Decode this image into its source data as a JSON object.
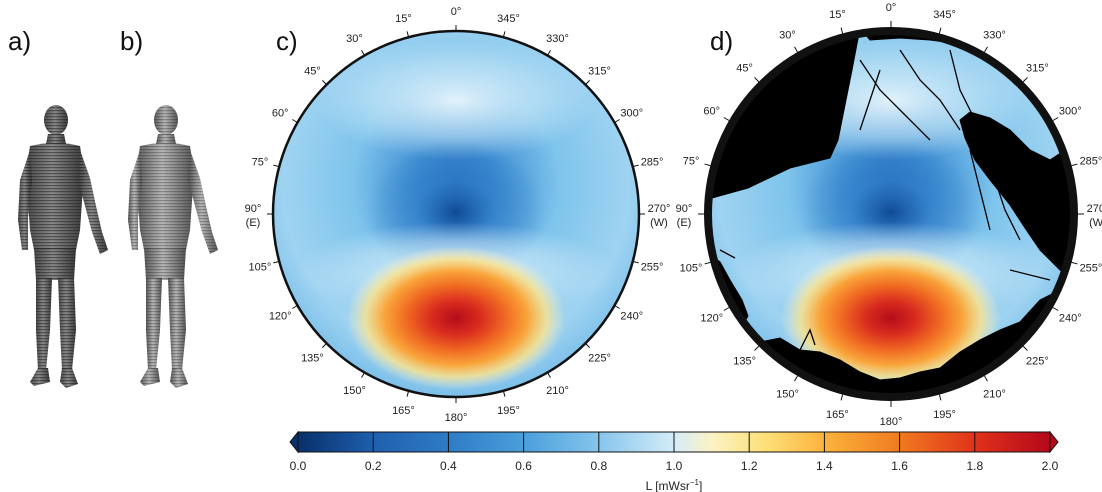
{
  "panels": [
    {
      "id": "a",
      "label": "a)",
      "figure": "human-model-voxel"
    },
    {
      "id": "b",
      "label": "b)",
      "figure": "human-model-shaded"
    },
    {
      "id": "c",
      "label": "c)",
      "figure": "sky-radiance-map"
    },
    {
      "id": "d",
      "label": "d)",
      "figure": "sky-radiance-map-with-canopy"
    }
  ],
  "azimuth_ticks": [
    {
      "deg": 0,
      "label": "0°"
    },
    {
      "deg": 15,
      "label": "345°"
    },
    {
      "deg": 30,
      "label": "330°"
    },
    {
      "deg": 45,
      "label": "315°"
    },
    {
      "deg": 60,
      "label": "300°"
    },
    {
      "deg": 75,
      "label": "285°"
    },
    {
      "deg": 90,
      "label": "270°",
      "sub": "(W)"
    },
    {
      "deg": 105,
      "label": "255°"
    },
    {
      "deg": 120,
      "label": "240°"
    },
    {
      "deg": 135,
      "label": "225°"
    },
    {
      "deg": 150,
      "label": "210°"
    },
    {
      "deg": 165,
      "label": "195°"
    },
    {
      "deg": 180,
      "label": "180°"
    },
    {
      "deg": 195,
      "label": "165°"
    },
    {
      "deg": 210,
      "label": "150°"
    },
    {
      "deg": 225,
      "label": "135°"
    },
    {
      "deg": 240,
      "label": "120°"
    },
    {
      "deg": 255,
      "label": "105°"
    },
    {
      "deg": 270,
      "label": "90°",
      "sub": "(E)"
    },
    {
      "deg": 285,
      "label": "75°"
    },
    {
      "deg": 300,
      "label": "60°"
    },
    {
      "deg": 315,
      "label": "45°"
    },
    {
      "deg": 330,
      "label": "30°"
    },
    {
      "deg": 345,
      "label": "15°"
    }
  ],
  "colorbar": {
    "label": "L [mWsr",
    "label_sup": "−1",
    "label_end": "]",
    "ticks": [
      "0.0",
      "0.2",
      "0.4",
      "0.6",
      "0.8",
      "1.0",
      "1.2",
      "1.4",
      "1.6",
      "1.8",
      "2.0"
    ],
    "colors": [
      "#08306b",
      "#1f5fae",
      "#3c8fd0",
      "#6fb8e6",
      "#b3dcf2",
      "#f7fbff",
      "#fde68a",
      "#fbb33c",
      "#f07b1f",
      "#e0321a",
      "#b5081a"
    ]
  }
}
